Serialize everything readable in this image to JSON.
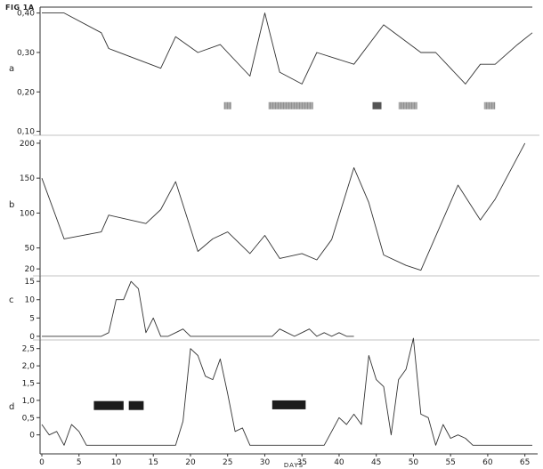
{
  "figure_title": "FIG 1A",
  "colors": {
    "line": "#333333",
    "hatched_bar": "#a9a9a9",
    "solid_bar": "#1c1c1c"
  },
  "chart_data": [
    {
      "id": "a",
      "panel_label": "a",
      "type": "line",
      "ylim": [
        0.09,
        0.415
      ],
      "yticks": [
        0.1,
        0.2,
        0.3,
        0.4
      ],
      "ytick_labels": [
        "0,10",
        "0,20",
        "0,30",
        "0,40"
      ],
      "x": [
        0,
        3,
        8,
        9,
        16,
        18,
        21,
        24,
        28,
        30,
        32,
        35,
        37,
        42,
        46,
        51,
        53,
        57,
        59,
        61,
        64,
        66
      ],
      "y": [
        0.4,
        0.4,
        0.35,
        0.31,
        0.26,
        0.34,
        0.3,
        0.32,
        0.24,
        0.4,
        0.25,
        0.22,
        0.3,
        0.27,
        0.37,
        0.3,
        0.3,
        0.22,
        0.27,
        0.27,
        0.32,
        0.35
      ],
      "bars": [
        {
          "start": 24.5,
          "end": 25.5,
          "level": 0.165,
          "style": "hatched"
        },
        {
          "start": 30.5,
          "end": 36.5,
          "level": 0.165,
          "style": "hatched"
        },
        {
          "start": 44.5,
          "end": 45.7,
          "level": 0.165,
          "style": "solid-hatched"
        },
        {
          "start": 48,
          "end": 50.5,
          "level": 0.165,
          "style": "hatched"
        },
        {
          "start": 59.5,
          "end": 61,
          "level": 0.165,
          "style": "hatched"
        }
      ]
    },
    {
      "id": "b",
      "panel_label": "b",
      "type": "line",
      "ylim": [
        10,
        205
      ],
      "yticks": [
        20,
        50,
        100,
        150,
        200
      ],
      "ytick_labels": [
        "20",
        "50",
        "100",
        "150",
        "200"
      ],
      "x": [
        0,
        3,
        8,
        9,
        14,
        16,
        18,
        21,
        23,
        25,
        28,
        30,
        32,
        35,
        37,
        39,
        42,
        44,
        46,
        49,
        51,
        56,
        59,
        61,
        65
      ],
      "y": [
        150,
        63,
        73,
        97,
        85,
        105,
        145,
        45,
        63,
        73,
        42,
        68,
        35,
        42,
        33,
        62,
        165,
        115,
        40,
        25,
        18,
        140,
        90,
        120,
        200
      ]
    },
    {
      "id": "c",
      "panel_label": "c",
      "type": "line",
      "ylim": [
        -1,
        16.5
      ],
      "yticks": [
        0,
        5,
        10,
        15
      ],
      "ytick_labels": [
        "0",
        "5",
        "10",
        "15"
      ],
      "x": [
        0,
        8,
        9,
        10,
        11,
        12,
        13,
        14,
        15,
        16,
        17,
        18,
        19,
        20,
        21,
        22,
        23,
        24,
        25,
        26,
        27,
        28,
        29,
        30,
        31,
        32,
        33,
        34,
        35,
        36,
        37,
        38,
        39,
        40,
        41,
        42
      ],
      "y": [
        0,
        0,
        1,
        10,
        10,
        15,
        13,
        1,
        5,
        0,
        0,
        1,
        2,
        0,
        0,
        0,
        0,
        0,
        0,
        0,
        0,
        0,
        0,
        0,
        0,
        2,
        1,
        0,
        1,
        2,
        0,
        1,
        0,
        1,
        0,
        0
      ]
    },
    {
      "id": "d",
      "panel_label": "d",
      "type": "line",
      "ylim": [
        -0.55,
        2.75
      ],
      "yticks": [
        0,
        0.5,
        1.0,
        1.5,
        2.0,
        2.5
      ],
      "ytick_labels": [
        "0",
        "0,5",
        "1,0",
        "1,5",
        "2,0",
        "2,5"
      ],
      "xlim": [
        0,
        66
      ],
      "xticks": [
        0,
        5,
        10,
        15,
        20,
        25,
        30,
        35,
        40,
        45,
        50,
        55,
        60,
        65
      ],
      "xlabel": "DAYS",
      "x": [
        0,
        1,
        2,
        3,
        4,
        5,
        6,
        7,
        18,
        19,
        20,
        21,
        22,
        23,
        24,
        25,
        26,
        27,
        28,
        38,
        39,
        40,
        41,
        42,
        43,
        44,
        45,
        46,
        47,
        48,
        49,
        50,
        51,
        52,
        53,
        54,
        55,
        56,
        57,
        58,
        59,
        60,
        66
      ],
      "y": [
        0.3,
        0,
        0.1,
        -0.3,
        0.3,
        0.1,
        -0.3,
        -0.3,
        -0.3,
        0.4,
        2.5,
        2.3,
        1.7,
        1.6,
        2.2,
        1.2,
        0.1,
        0.2,
        -0.3,
        -0.3,
        0.1,
        0.5,
        0.3,
        0.6,
        0.3,
        2.3,
        1.6,
        1.4,
        0,
        1.6,
        1.9,
        2.8,
        0.6,
        0.5,
        -0.3,
        0.3,
        -0.1,
        0,
        -0.1,
        -0.3,
        -0.3,
        -0.3,
        -0.3
      ],
      "bars": [
        {
          "start": 7,
          "end": 11,
          "level": 0.85,
          "style": "solid"
        },
        {
          "start": 11.7,
          "end": 13.7,
          "level": 0.85,
          "style": "solid"
        },
        {
          "start": 31,
          "end": 35.5,
          "level": 0.87,
          "style": "solid"
        }
      ]
    }
  ]
}
